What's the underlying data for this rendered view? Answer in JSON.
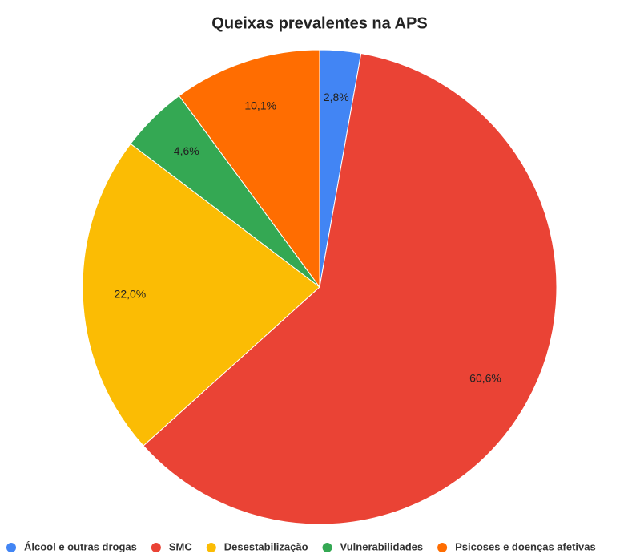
{
  "chart_data": {
    "type": "pie",
    "title": "Queixas prevalentes na APS",
    "categories": [
      "Álcool e outras drogas",
      "SMC",
      "Desestabilização",
      "Vulnerabilidades",
      "Psicoses e doenças afetivas"
    ],
    "values": [
      2.8,
      60.6,
      22.0,
      4.6,
      10.1
    ],
    "value_labels": [
      "2,8%",
      "60,6%",
      "22,0%",
      "4,6%",
      "10,1%"
    ],
    "colors": [
      "#4285f4",
      "#ea4335",
      "#fbbc04",
      "#34a853",
      "#ff6d01"
    ],
    "legend": "bottom"
  }
}
